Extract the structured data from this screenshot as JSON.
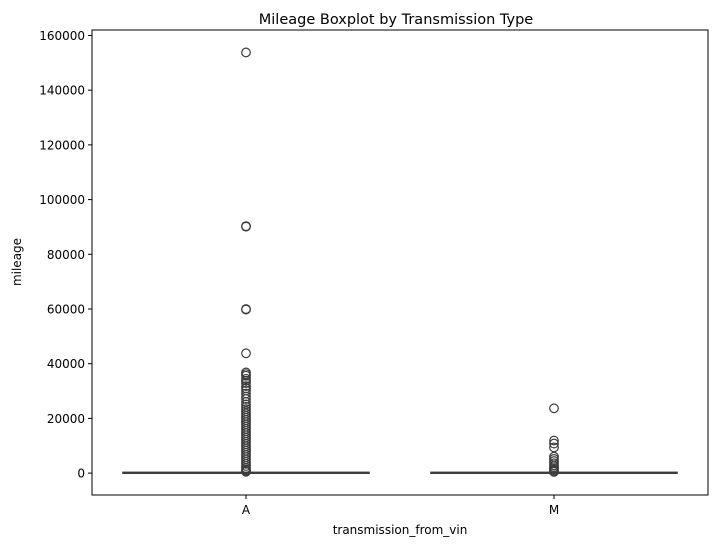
{
  "chart_data": {
    "type": "boxplot",
    "title": "Mileage Boxplot by Transmission Type",
    "xlabel": "transmission_from_vin",
    "ylabel": "mileage",
    "ylim": [
      -8000,
      162000
    ],
    "yticks": [
      0,
      20000,
      40000,
      60000,
      80000,
      100000,
      120000,
      140000,
      160000
    ],
    "grid": false,
    "categories": [
      "A",
      "M"
    ],
    "series": [
      {
        "category": "A",
        "whisker_low": 0,
        "q1": 0,
        "median": 10,
        "q3": 120,
        "whisker_high": 300,
        "outliers": [
          153800,
          90300,
          90100,
          60000,
          59800,
          43800,
          36800,
          36200,
          35600,
          34500,
          33800,
          32900,
          31800,
          31000,
          30200,
          29100,
          28000,
          27100,
          26000,
          25100,
          24200,
          23400,
          22600,
          21800,
          21000,
          20200,
          19400,
          18600,
          17800,
          17000,
          16200,
          15400,
          14600,
          13800,
          13000,
          12200,
          11400,
          10600,
          9800,
          9000,
          8200,
          7400,
          6600,
          5800,
          5000,
          4200,
          3400,
          2600,
          1800,
          1200,
          800,
          500
        ]
      },
      {
        "category": "M",
        "whisker_low": 0,
        "q1": 0,
        "median": 10,
        "q3": 120,
        "whisker_high": 300,
        "outliers": [
          23700,
          11900,
          10800,
          9400,
          6000,
          5200,
          4400,
          3600,
          2800,
          2200,
          1600,
          1100,
          700,
          450
        ]
      }
    ],
    "style": {
      "box_edge": "#3d3d3d",
      "box_fill": "#3d70a5",
      "outlier_edge": "#3d3d3d"
    }
  }
}
